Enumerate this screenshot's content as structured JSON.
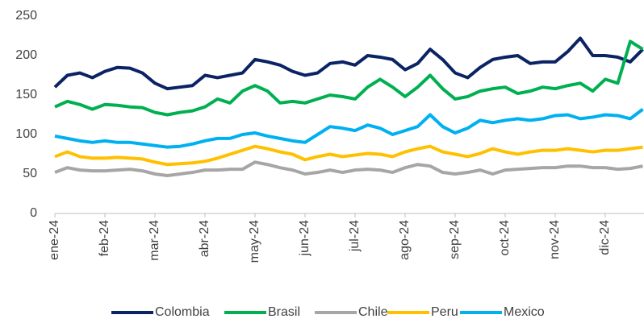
{
  "chart_data": {
    "type": "line",
    "categories": [
      "ene-24",
      null,
      null,
      null,
      "feb-24",
      null,
      null,
      null,
      "mar-24",
      null,
      null,
      null,
      "abr-24",
      null,
      null,
      null,
      "may-24",
      null,
      null,
      null,
      "jun-24",
      null,
      null,
      null,
      "jul-24",
      null,
      null,
      null,
      "ago-24",
      null,
      null,
      null,
      "sep-24",
      null,
      null,
      null,
      "oct-24",
      null,
      null,
      null,
      "nov-24",
      null,
      null,
      null,
      "dic-24",
      null,
      null,
      null
    ],
    "ylim": [
      0,
      250
    ],
    "yticks": [
      0,
      50,
      100,
      150,
      200,
      250
    ],
    "grid": false,
    "legend": "bottom",
    "series": [
      {
        "name": "Colombia",
        "color": "#0b2265",
        "values": [
          160,
          175,
          178,
          172,
          180,
          185,
          184,
          178,
          165,
          158,
          160,
          162,
          175,
          172,
          175,
          178,
          195,
          192,
          188,
          180,
          175,
          178,
          190,
          192,
          188,
          200,
          198,
          195,
          182,
          190,
          208,
          195,
          178,
          172,
          185,
          195,
          198,
          200,
          190,
          192,
          192,
          205,
          222,
          200,
          200,
          198,
          192,
          208
        ]
      },
      {
        "name": "Brasil",
        "color": "#00b050",
        "values": [
          135,
          142,
          138,
          132,
          138,
          137,
          135,
          134,
          128,
          125,
          128,
          130,
          135,
          145,
          140,
          155,
          162,
          155,
          140,
          142,
          140,
          145,
          150,
          148,
          145,
          160,
          170,
          160,
          148,
          160,
          175,
          158,
          145,
          148,
          155,
          158,
          160,
          152,
          155,
          160,
          158,
          162,
          165,
          155,
          170,
          165,
          218,
          208
        ]
      },
      {
        "name": "Chile",
        "color": "#a6a6a6",
        "values": [
          52,
          58,
          55,
          54,
          54,
          55,
          56,
          54,
          50,
          48,
          50,
          52,
          55,
          55,
          56,
          56,
          65,
          62,
          58,
          55,
          50,
          52,
          55,
          52,
          55,
          56,
          55,
          52,
          58,
          62,
          60,
          52,
          50,
          52,
          55,
          50,
          55,
          56,
          57,
          58,
          58,
          60,
          60,
          58,
          58,
          56,
          57,
          60
        ]
      },
      {
        "name": "Peru",
        "color": "#ffc000",
        "values": [
          72,
          78,
          72,
          70,
          70,
          71,
          70,
          69,
          65,
          62,
          63,
          64,
          66,
          70,
          75,
          80,
          85,
          82,
          78,
          75,
          68,
          72,
          75,
          72,
          74,
          76,
          75,
          72,
          78,
          82,
          85,
          78,
          75,
          72,
          76,
          82,
          78,
          75,
          78,
          80,
          80,
          82,
          80,
          78,
          80,
          80,
          82,
          84
        ]
      },
      {
        "name": "Mexico",
        "color": "#00b0f0",
        "values": [
          98,
          95,
          92,
          90,
          92,
          90,
          90,
          88,
          86,
          84,
          85,
          88,
          92,
          95,
          95,
          100,
          102,
          98,
          95,
          92,
          90,
          100,
          110,
          108,
          105,
          112,
          108,
          100,
          105,
          110,
          125,
          110,
          102,
          108,
          118,
          115,
          118,
          120,
          118,
          120,
          124,
          125,
          120,
          122,
          125,
          124,
          120,
          132
        ]
      }
    ]
  }
}
